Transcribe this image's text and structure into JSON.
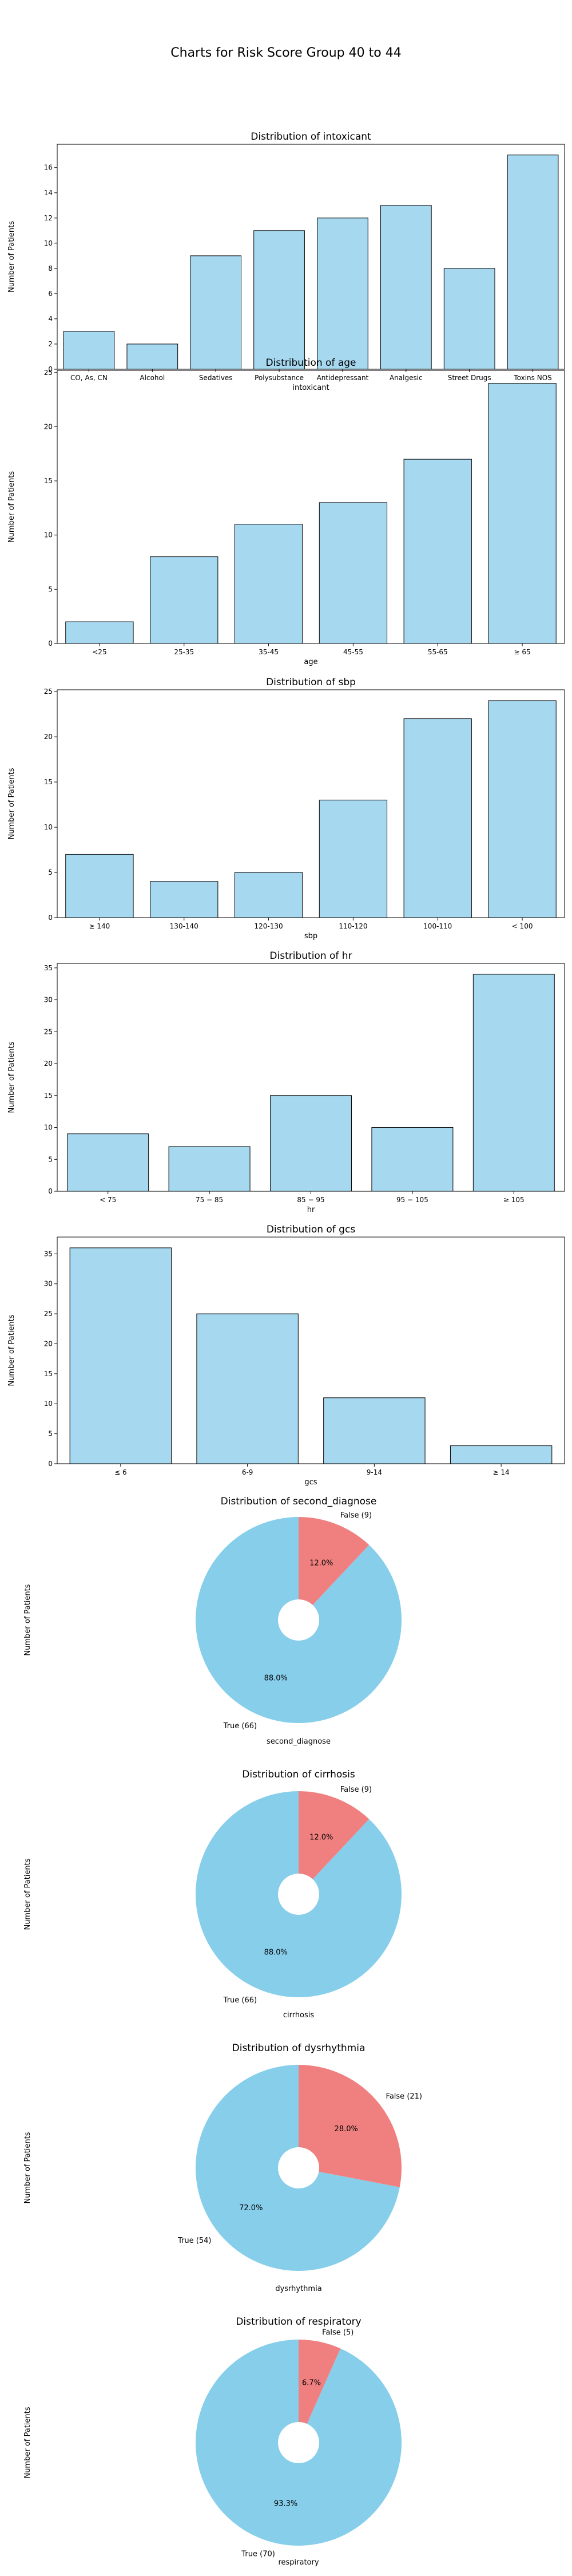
{
  "suptitle": "Charts for Risk Score Group 40 to 44",
  "colors": {
    "bar": "#a6d8f0",
    "edge": "#000000",
    "true_slice": "#87ceeb",
    "false_slice": "#f08080"
  },
  "chart_data": [
    {
      "type": "bar",
      "title": "Distribution of intoxicant",
      "xlabel": "intoxicant",
      "ylabel": "Number of Patients",
      "categories": [
        "CO, As, CN",
        "Alcohol",
        "Sedatives",
        "Polysubstance",
        "Antidepressant",
        "Analgesic",
        "Street Drugs",
        "Toxins NOS"
      ],
      "values": [
        3,
        2,
        9,
        11,
        12,
        13,
        8,
        17
      ],
      "ylim": [
        0,
        17.85
      ],
      "yticks": [
        0,
        2,
        4,
        6,
        8,
        10,
        12,
        14,
        16
      ]
    },
    {
      "type": "bar",
      "title": "Distribution of age",
      "xlabel": "age",
      "ylabel": "Number of Patients",
      "categories": [
        "<25",
        "25-35",
        "35-45",
        "45-55",
        "55-65",
        "≥ 65"
      ],
      "values": [
        2,
        8,
        11,
        13,
        17,
        24
      ],
      "ylim": [
        0,
        25.2
      ],
      "yticks": [
        0,
        5,
        10,
        15,
        20,
        25
      ]
    },
    {
      "type": "bar",
      "title": "Distribution of sbp",
      "xlabel": "sbp",
      "ylabel": "Number of Patients",
      "categories": [
        "≥ 140",
        "130-140",
        "120-130",
        "110-120",
        "100-110",
        "< 100"
      ],
      "values": [
        7,
        4,
        5,
        13,
        22,
        24
      ],
      "ylim": [
        0,
        25.2
      ],
      "yticks": [
        0,
        5,
        10,
        15,
        20,
        25
      ]
    },
    {
      "type": "bar",
      "title": "Distribution of hr",
      "xlabel": "hr",
      "ylabel": "Number of Patients",
      "categories": [
        "< 75",
        "75 − 85",
        "85 − 95",
        "95 − 105",
        "≥ 105"
      ],
      "values": [
        9,
        7,
        15,
        10,
        34
      ],
      "ylim": [
        0,
        35.7
      ],
      "yticks": [
        0,
        5,
        10,
        15,
        20,
        25,
        30,
        35
      ]
    },
    {
      "type": "bar",
      "title": "Distribution of gcs",
      "xlabel": "gcs",
      "ylabel": "Number of Patients",
      "categories": [
        "≤ 6",
        "6-9",
        "9-14",
        "≥ 14"
      ],
      "values": [
        36,
        25,
        11,
        3
      ],
      "ylim": [
        0,
        37.8
      ],
      "yticks": [
        0,
        5,
        10,
        15,
        20,
        25,
        30,
        35
      ]
    },
    {
      "type": "pie",
      "title": "Distribution of second_diagnose",
      "xlabel": "second_diagnose",
      "ylabel": "Number of Patients",
      "labels": [
        "True (66)",
        "False (9)"
      ],
      "values": [
        66,
        9
      ],
      "pct_labels": [
        "88.0%",
        "12.0%"
      ]
    },
    {
      "type": "pie",
      "title": "Distribution of cirrhosis",
      "xlabel": "cirrhosis",
      "ylabel": "Number of Patients",
      "labels": [
        "True (66)",
        "False (9)"
      ],
      "values": [
        66,
        9
      ],
      "pct_labels": [
        "88.0%",
        "12.0%"
      ]
    },
    {
      "type": "pie",
      "title": "Distribution of dysrhythmia",
      "xlabel": "dysrhythmia",
      "ylabel": "Number of Patients",
      "labels": [
        "True (54)",
        "False (21)"
      ],
      "values": [
        54,
        21
      ],
      "pct_labels": [
        "72.0%",
        "28.0%"
      ]
    },
    {
      "type": "pie",
      "title": "Distribution of respiratory",
      "xlabel": "respiratory",
      "ylabel": "Number of Patients",
      "labels": [
        "True (70)",
        "False (5)"
      ],
      "values": [
        70,
        5
      ],
      "pct_labels": [
        "93.3%",
        "6.7%"
      ]
    }
  ]
}
